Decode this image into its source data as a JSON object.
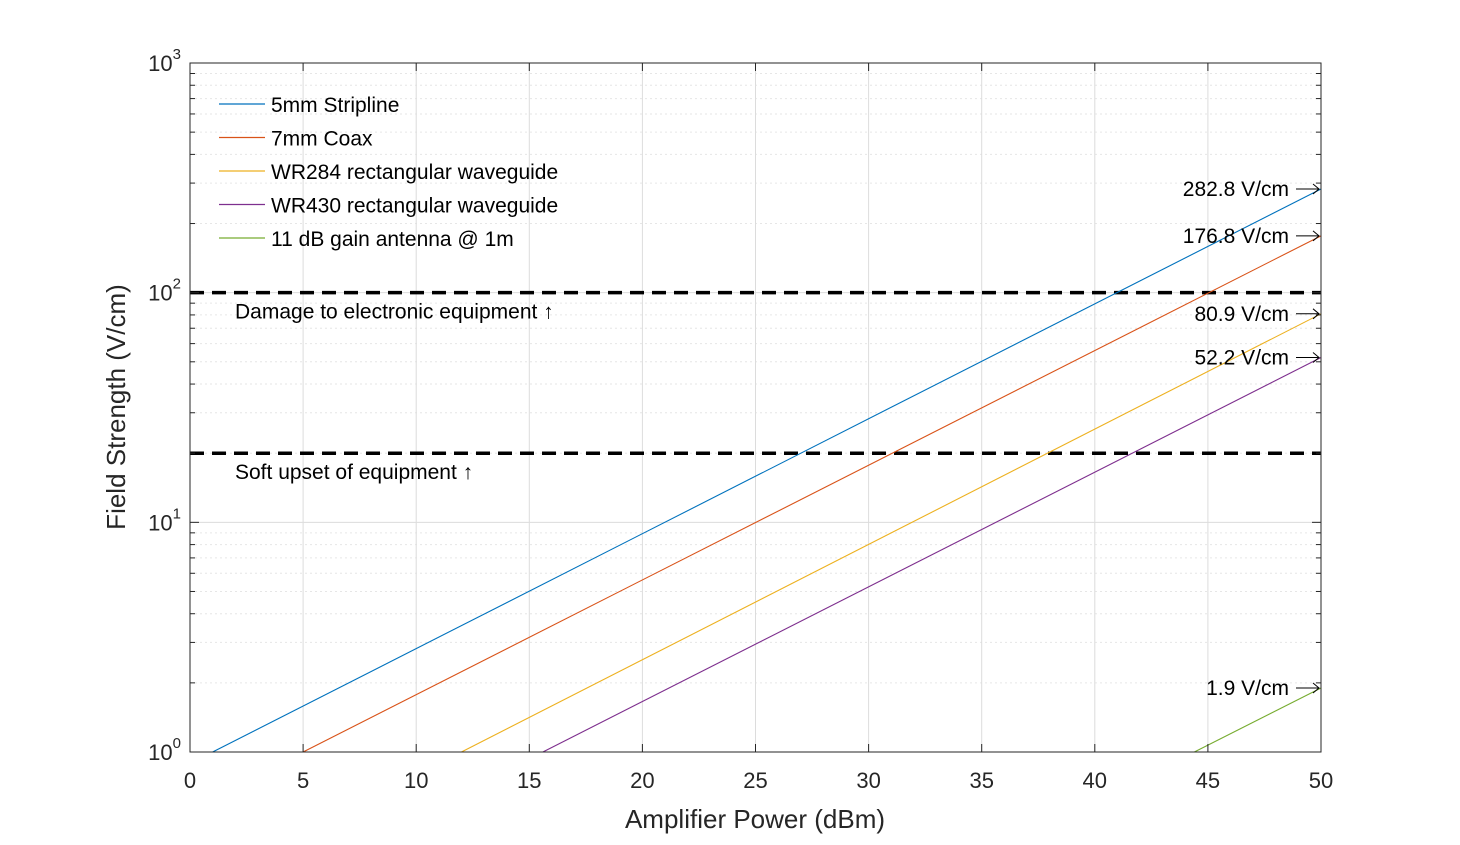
{
  "chart_data": {
    "type": "line",
    "title": "",
    "xlabel": "Amplifier Power (dBm)",
    "ylabel": "Field Strength (V/cm)",
    "xlim": [
      0,
      50
    ],
    "ylim": [
      1,
      1000
    ],
    "yscale": "log",
    "grid": true,
    "legend_position": "top-left",
    "x_ticks": [
      "0",
      "5",
      "10",
      "15",
      "20",
      "25",
      "30",
      "35",
      "40",
      "45",
      "50"
    ],
    "y_ticks": [
      {
        "base": "10",
        "exp": "0",
        "value": 1
      },
      {
        "base": "10",
        "exp": "1",
        "value": 10
      },
      {
        "base": "10",
        "exp": "2",
        "value": 100
      },
      {
        "base": "10",
        "exp": "3",
        "value": 1000
      }
    ],
    "series": [
      {
        "name": "5mm Stripline",
        "color": "#0072BD",
        "x": [
          1,
          50
        ],
        "y": [
          1.0,
          282.8
        ],
        "end_label": "282.8 V/cm"
      },
      {
        "name": "7mm Coax",
        "color": "#D95319",
        "x": [
          5,
          50
        ],
        "y": [
          1.0,
          176.8
        ],
        "end_label": "176.8 V/cm"
      },
      {
        "name": "WR284 rectangular waveguide",
        "color": "#EDB120",
        "x": [
          12,
          50
        ],
        "y": [
          1.0,
          80.9
        ],
        "end_label": "80.9 V/cm"
      },
      {
        "name": "WR430 rectangular waveguide",
        "color": "#7E2F8E",
        "x": [
          15.6,
          50
        ],
        "y": [
          1.0,
          52.2
        ],
        "end_label": "52.2 V/cm"
      },
      {
        "name": "11 dB gain antenna @ 1m",
        "color": "#77AC30",
        "x": [
          44.4,
          50
        ],
        "y": [
          1.0,
          1.9
        ],
        "end_label": "1.9 V/cm"
      }
    ],
    "thresholds": [
      {
        "value": 100,
        "label": "Damage to electronic equipment ↑"
      },
      {
        "value": 20,
        "label": "Soft upset of equipment ↑"
      }
    ]
  }
}
